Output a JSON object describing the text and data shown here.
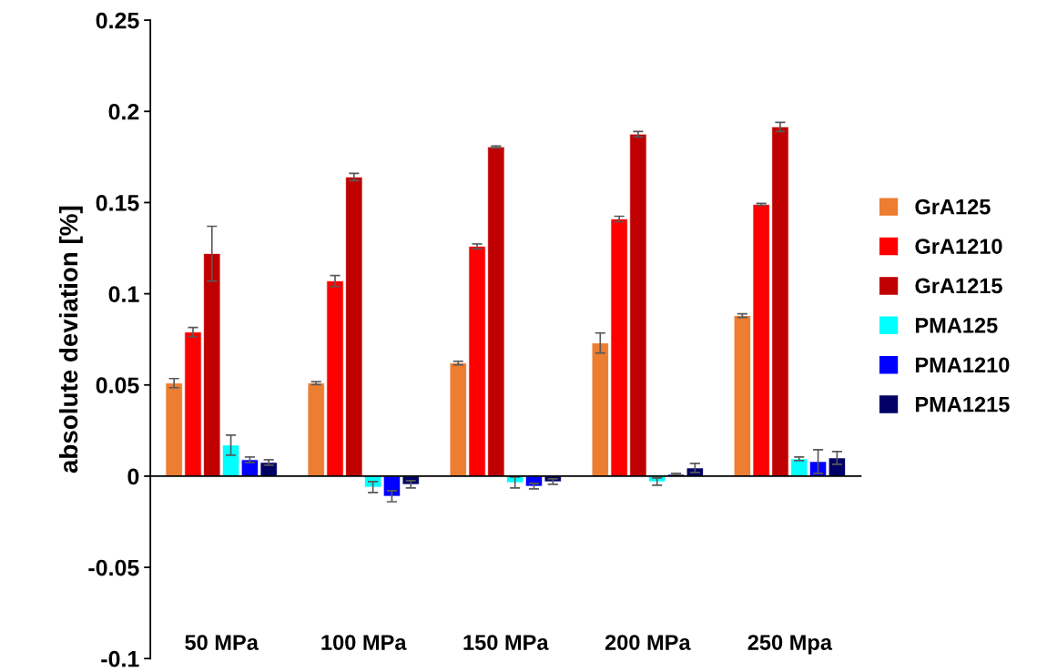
{
  "chart_data": {
    "type": "bar",
    "ylabel": "absolute deviation [%]",
    "categories": [
      "50 MPa",
      "100 MPa",
      "150 MPa",
      "200 MPa",
      "250 Mpa"
    ],
    "series": [
      {
        "name": "GrA125",
        "color": "#ed7d31",
        "values": [
          0.051,
          0.051,
          0.062,
          0.073,
          0.088
        ],
        "errors": [
          0.0025,
          0.0008,
          0.001,
          0.0055,
          0.001
        ]
      },
      {
        "name": "GrA1210",
        "color": "#ff0000",
        "values": [
          0.079,
          0.107,
          0.126,
          0.141,
          0.149
        ],
        "errors": [
          0.0025,
          0.003,
          0.0013,
          0.0015,
          0.0005
        ]
      },
      {
        "name": "GrA1215",
        "color": "#c00000",
        "values": [
          0.122,
          0.164,
          0.1805,
          0.1875,
          0.1915
        ],
        "errors": [
          0.015,
          0.002,
          0.0005,
          0.0015,
          0.0025
        ]
      },
      {
        "name": "PMA125",
        "color": "#00ffff",
        "values": [
          0.017,
          -0.006,
          -0.0035,
          -0.003,
          0.0095
        ],
        "errors": [
          0.0055,
          0.003,
          0.003,
          0.002,
          0.001
        ]
      },
      {
        "name": "PMA1210",
        "color": "#0000ff",
        "values": [
          0.009,
          -0.011,
          -0.0055,
          0.001,
          0.008
        ],
        "errors": [
          0.0015,
          0.003,
          0.0015,
          0.0005,
          0.0065
        ]
      },
      {
        "name": "PMA1215",
        "color": "#000066",
        "values": [
          0.0075,
          -0.0045,
          -0.003,
          0.0045,
          0.01
        ],
        "errors": [
          0.0015,
          0.002,
          0.0015,
          0.0025,
          0.0035
        ]
      }
    ],
    "ylim": [
      -0.1,
      0.25
    ],
    "yticks": [
      -0.1,
      -0.05,
      0,
      0.05,
      0.1,
      0.15,
      0.2,
      0.25
    ],
    "legend": "right"
  }
}
